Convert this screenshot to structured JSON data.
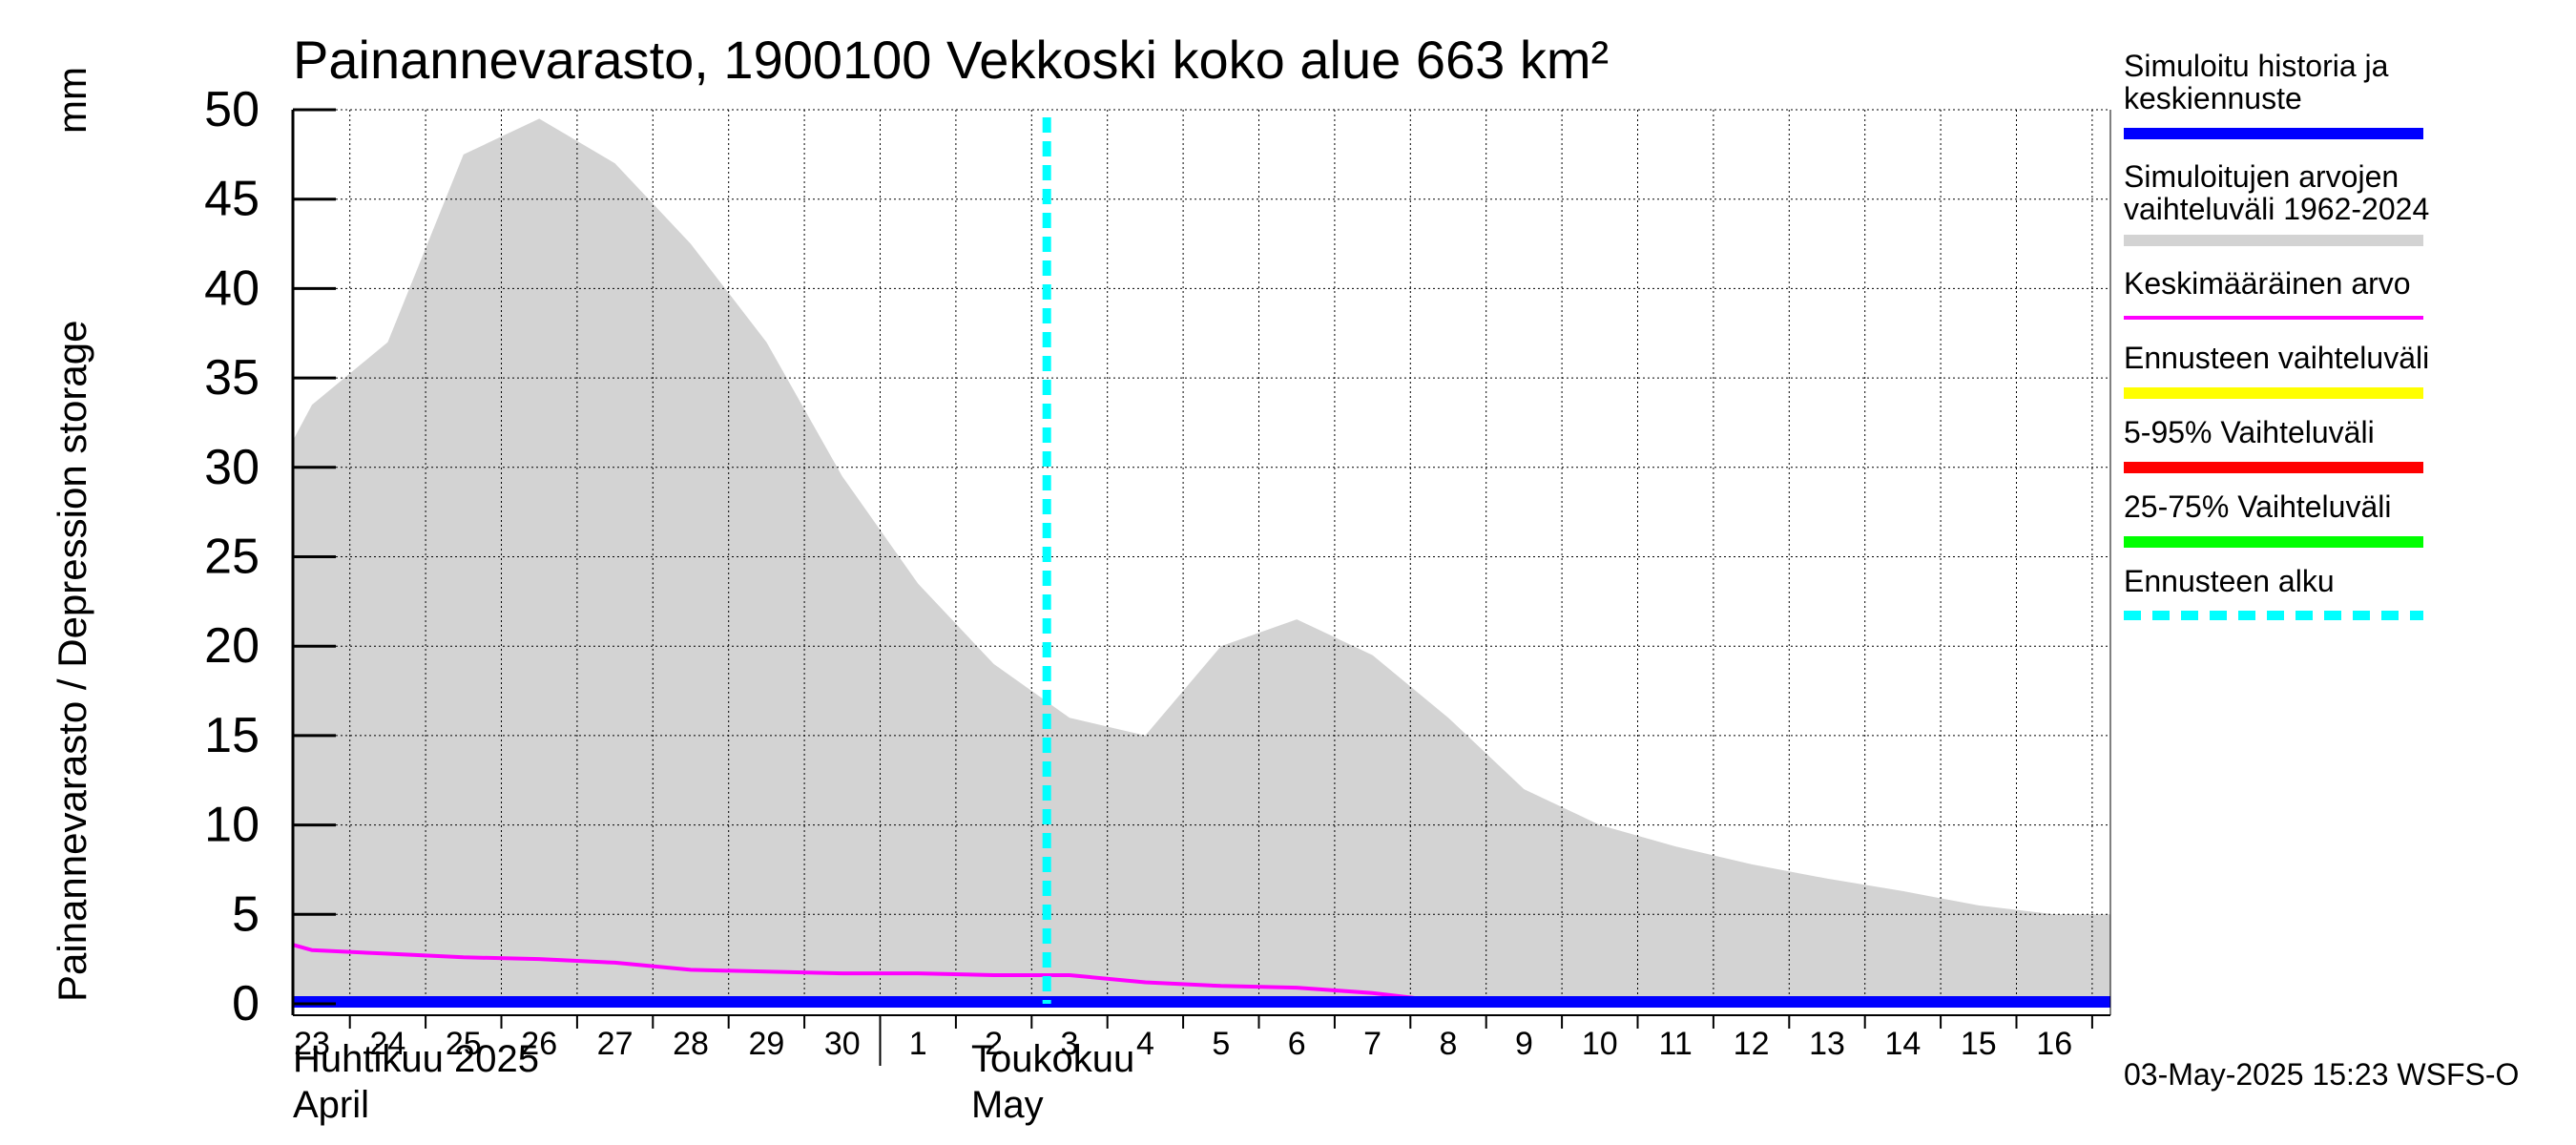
{
  "title": "Painannevarasto, 1900100 Vekkoski koko alue 663 km²",
  "y_axis_label": "Painannevarasto / Depression storage",
  "y_axis_unit": "mm",
  "months": [
    {
      "line1": "Huhtikuu  2025",
      "line2": "April"
    },
    {
      "line1": "Toukokuu",
      "line2": "May"
    }
  ],
  "legend": [
    {
      "label": "Simuloitu historia ja\nkeskiennuste",
      "color": "#0000ff",
      "style": "solid"
    },
    {
      "label": "Simuloitujen arvojen\nvaihteluväli 1962-2024",
      "color": "#d3d3d3",
      "style": "solid"
    },
    {
      "label": "Keskimääräinen arvo",
      "color": "#ff00ff",
      "style": "thin"
    },
    {
      "label": "Ennusteen vaihteluväli",
      "color": "#ffff00",
      "style": "solid"
    },
    {
      "label": "5-95% Vaihteluväli",
      "color": "#ff0000",
      "style": "solid"
    },
    {
      "label": "25-75% Vaihteluväli",
      "color": "#00ff00",
      "style": "solid"
    },
    {
      "label": "Ennusteen alku",
      "color": "#00ffff",
      "style": "dashed"
    }
  ],
  "timestamp": "03-May-2025 15:23 WSFS-O",
  "chart_data": {
    "type": "area",
    "title": "Painannevarasto, 1900100 Vekkoski koko alue 663 km²",
    "xlabel": "",
    "ylabel": "Painannevarasto / Depression storage mm",
    "ylim": [
      0,
      50
    ],
    "yticks": [
      0,
      5,
      10,
      15,
      20,
      25,
      30,
      35,
      40,
      45,
      50
    ],
    "grid": true,
    "x_start": "2025-04-23",
    "x_end": "2025-05-16",
    "x_tick_labels": [
      "23",
      "24",
      "25",
      "26",
      "27",
      "28",
      "29",
      "30",
      "1",
      "2",
      "3",
      "4",
      "5",
      "6",
      "7",
      "8",
      "9",
      "10",
      "11",
      "12",
      "13",
      "14",
      "15",
      "16"
    ],
    "forecast_start": "2025-05-02",
    "series": [
      {
        "name": "Simuloitujen arvojen vaihteluväli 1962-2024",
        "color": "#d3d3d3",
        "points": [
          [
            "2025-04-22",
            31.5
          ],
          [
            "2025-04-23",
            33.5
          ],
          [
            "2025-04-24",
            37.0
          ],
          [
            "2025-04-25",
            47.5
          ],
          [
            "2025-04-26",
            49.5
          ],
          [
            "2025-04-27",
            47.0
          ],
          [
            "2025-04-28",
            42.5
          ],
          [
            "2025-04-29",
            37.0
          ],
          [
            "2025-04-30",
            29.5
          ],
          [
            "2025-05-01",
            23.5
          ],
          [
            "2025-05-02",
            19.0
          ],
          [
            "2025-05-03",
            16.0
          ],
          [
            "2025-05-04",
            15.0
          ],
          [
            "2025-05-05",
            20.0
          ],
          [
            "2025-05-06",
            21.5
          ],
          [
            "2025-05-07",
            19.5
          ],
          [
            "2025-05-08",
            16.0
          ],
          [
            "2025-05-09",
            12.0
          ],
          [
            "2025-05-10",
            10.0
          ],
          [
            "2025-05-11",
            8.8
          ],
          [
            "2025-05-12",
            7.8
          ],
          [
            "2025-05-13",
            7.0
          ],
          [
            "2025-05-14",
            6.3
          ],
          [
            "2025-05-15",
            5.5
          ],
          [
            "2025-05-16",
            5.0
          ]
        ]
      },
      {
        "name": "Keskimääräinen arvo",
        "color": "#ff00ff",
        "points": [
          [
            "2025-04-22",
            3.3
          ],
          [
            "2025-04-23",
            3.0
          ],
          [
            "2025-04-24",
            2.8
          ],
          [
            "2025-04-25",
            2.6
          ],
          [
            "2025-04-26",
            2.5
          ],
          [
            "2025-04-27",
            2.3
          ],
          [
            "2025-04-28",
            1.9
          ],
          [
            "2025-04-29",
            1.8
          ],
          [
            "2025-04-30",
            1.7
          ],
          [
            "2025-05-01",
            1.7
          ],
          [
            "2025-05-02",
            1.6
          ],
          [
            "2025-05-03",
            1.6
          ],
          [
            "2025-05-04",
            1.2
          ],
          [
            "2025-05-05",
            1.0
          ],
          [
            "2025-05-06",
            0.9
          ],
          [
            "2025-05-07",
            0.6
          ],
          [
            "2025-05-08",
            0.1
          ],
          [
            "2025-05-09",
            0.0
          ],
          [
            "2025-05-10",
            0.0
          ],
          [
            "2025-05-11",
            0.0
          ],
          [
            "2025-05-12",
            0.0
          ],
          [
            "2025-05-13",
            0.0
          ],
          [
            "2025-05-14",
            0.0
          ],
          [
            "2025-05-15",
            0.0
          ],
          [
            "2025-05-16",
            0.0
          ]
        ]
      },
      {
        "name": "Simuloitu historia ja keskiennuste",
        "color": "#0000ff",
        "points": [
          [
            "2025-04-22",
            0.0
          ],
          [
            "2025-05-02",
            0.0
          ],
          [
            "2025-05-16",
            0.0
          ]
        ]
      }
    ]
  }
}
